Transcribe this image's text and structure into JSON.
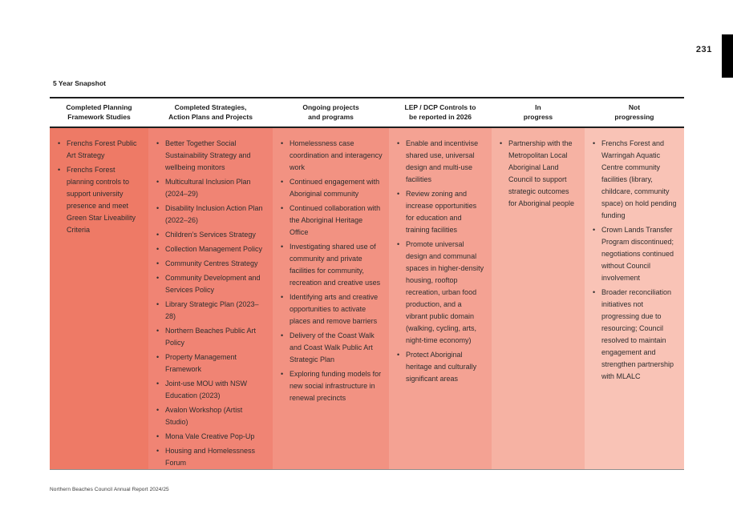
{
  "page": {
    "number": "231",
    "section_title": "5 Year Snapshot",
    "footer": "Northern Beaches Council Annual Report 2024/25",
    "colors": {
      "edge_tab": "#000000",
      "rule_dark": "#1f1f1f",
      "rule_bottom": "#8f8f8f",
      "body_text": "#2e2e2e"
    }
  },
  "table": {
    "columns": [
      {
        "header": [
          "Completed Planning",
          "Framework Studies"
        ],
        "color": "#ee7a66",
        "items": [
          "Frenchs Forest Public Art Strategy",
          "Frenchs Forest planning controls to support university presence and meet Green Star Liveability Criteria"
        ]
      },
      {
        "header": [
          "Completed Strategies,",
          "Action Plans and Projects"
        ],
        "color": "#f08474",
        "items": [
          "Better Together Social Sustainability Strategy and wellbeing monitors",
          "Multicultural Inclusion Plan (2024–29)",
          "Disability Inclusion Action Plan (2022–26)",
          "Children’s Services Strategy",
          "Collection Management Policy",
          "Community Centres Strategy",
          "Community Development and Services Policy",
          "Library Strategic Plan (2023–28)",
          "Northern Beaches Public Art Policy",
          "Property Management Framework",
          "Joint-use MOU with NSW Education (2023)",
          "Avalon Workshop (Artist Studio)",
          "Mona Vale Creative Pop-Up",
          "Housing and Homelessness Forum"
        ]
      },
      {
        "header": [
          "Ongoing projects",
          "and programs"
        ],
        "color": "#f29282",
        "items": [
          "Homelessness case coordination and interagency work",
          "Continued engagement with Aboriginal community",
          "Continued collaboration with the Aboriginal Heritage Office",
          "Investigating shared use of community and private facilities for community, recreation and creative uses",
          "Identifying arts and creative opportunities to activate places and remove barriers",
          "Delivery of the Coast Walk and Coast Walk Public Art Strategic Plan",
          "Exploring funding models for new social infrastructure in renewal precincts"
        ]
      },
      {
        "header": [
          "LEP / DCP Controls to",
          "be reported in 2026"
        ],
        "color": "#f4a293",
        "items": [
          "Enable and incentivise shared use, universal design and multi-use facilities",
          "Review zoning and increase opportunities for education and training facilities",
          "Promote universal design and communal spaces in higher-density housing, rooftop recreation, urban food production, and a vibrant public domain (walking, cycling, arts, night-time economy)",
          "Protect Aboriginal heritage and culturally significant areas"
        ]
      },
      {
        "header": [
          "In",
          "progress"
        ],
        "color": "#f6b2a3",
        "items": [
          "Partnership with the Metropolitan Local Aboriginal Land Council to support strategic outcomes for Aboriginal people"
        ]
      },
      {
        "header": [
          "Not",
          "progressing"
        ],
        "color": "#f9c3b6",
        "items": [
          "Frenchs Forest and Warringah Aquatic Centre community facilities (library, childcare, community space) on hold pending funding",
          "Crown Lands Transfer Program discontinued; negotiations continued without Council involvement",
          "Broader reconciliation initiatives not progressing due to resourcing; Council resolved to maintain engagement and strengthen partnership with MLALC"
        ]
      }
    ]
  }
}
